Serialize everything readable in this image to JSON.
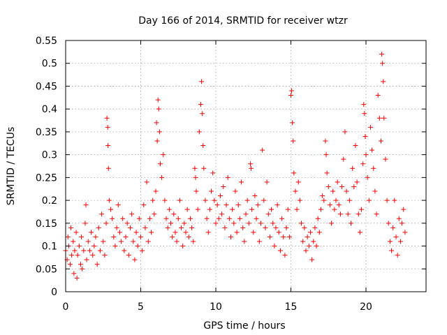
{
  "chart_data": {
    "type": "scatter",
    "title": "Day 166 of 2014, SRMTID for receiver wtzr",
    "xlabel": "GPS time / hours",
    "ylabel": "SRMTID / TECUs",
    "xlim": [
      0,
      24
    ],
    "ylim": [
      0,
      0.55
    ],
    "xticks": [
      0,
      5,
      10,
      15,
      20
    ],
    "xtick_labels": [
      "0",
      "5",
      "10",
      "15",
      "20"
    ],
    "yticks": [
      0,
      0.05,
      0.1,
      0.15,
      0.2,
      0.25,
      0.3,
      0.35,
      0.4,
      0.45,
      0.5,
      0.55
    ],
    "ytick_labels": [
      "0",
      "0.05",
      "0.1",
      "0.15",
      "0.2",
      "0.25",
      "0.3",
      "0.35",
      "0.4",
      "0.45",
      "0.5",
      "0.55"
    ],
    "grid": true,
    "marker": "+",
    "marker_color": "#ff0000",
    "series": [
      {
        "name": "SRMTID",
        "points": [
          [
            0.0,
            0.09
          ],
          [
            0.1,
            0.07
          ],
          [
            0.15,
            0.12
          ],
          [
            0.2,
            0.1
          ],
          [
            0.3,
            0.06
          ],
          [
            0.35,
            0.14
          ],
          [
            0.4,
            0.08
          ],
          [
            0.5,
            0.11
          ],
          [
            0.55,
            0.04
          ],
          [
            0.6,
            0.09
          ],
          [
            0.7,
            0.13
          ],
          [
            0.75,
            0.03
          ],
          [
            0.8,
            0.08
          ],
          [
            0.9,
            0.1
          ],
          [
            1.0,
            0.06
          ],
          [
            1.05,
            0.12
          ],
          [
            1.1,
            0.05
          ],
          [
            1.2,
            0.09
          ],
          [
            1.3,
            0.15
          ],
          [
            1.35,
            0.19
          ],
          [
            1.4,
            0.07
          ],
          [
            1.5,
            0.11
          ],
          [
            1.6,
            0.09
          ],
          [
            1.7,
            0.13
          ],
          [
            1.8,
            0.08
          ],
          [
            1.9,
            0.1
          ],
          [
            2.0,
            0.12
          ],
          [
            2.1,
            0.06
          ],
          [
            2.2,
            0.14
          ],
          [
            2.3,
            0.09
          ],
          [
            2.4,
            0.17
          ],
          [
            2.5,
            0.11
          ],
          [
            2.6,
            0.08
          ],
          [
            2.7,
            0.15
          ],
          [
            2.75,
            0.38
          ],
          [
            2.8,
            0.36
          ],
          [
            2.82,
            0.32
          ],
          [
            2.85,
            0.27
          ],
          [
            2.9,
            0.2
          ],
          [
            3.0,
            0.18
          ],
          [
            3.1,
            0.16
          ],
          [
            3.2,
            0.12
          ],
          [
            3.3,
            0.1
          ],
          [
            3.4,
            0.14
          ],
          [
            3.5,
            0.19
          ],
          [
            3.6,
            0.13
          ],
          [
            3.7,
            0.11
          ],
          [
            3.8,
            0.16
          ],
          [
            3.9,
            0.09
          ],
          [
            4.0,
            0.12
          ],
          [
            4.1,
            0.15
          ],
          [
            4.2,
            0.08
          ],
          [
            4.3,
            0.14
          ],
          [
            4.4,
            0.17
          ],
          [
            4.5,
            0.11
          ],
          [
            4.6,
            0.07
          ],
          [
            4.7,
            0.13
          ],
          [
            4.8,
            0.1
          ],
          [
            4.9,
            0.16
          ],
          [
            5.0,
            0.12
          ],
          [
            5.1,
            0.09
          ],
          [
            5.2,
            0.19
          ],
          [
            5.3,
            0.14
          ],
          [
            5.4,
            0.24
          ],
          [
            5.5,
            0.11
          ],
          [
            5.6,
            0.16
          ],
          [
            5.7,
            0.13
          ],
          [
            5.8,
            0.2
          ],
          [
            5.9,
            0.17
          ],
          [
            6.0,
            0.22
          ],
          [
            6.05,
            0.37
          ],
          [
            6.1,
            0.33
          ],
          [
            6.15,
            0.42
          ],
          [
            6.2,
            0.4
          ],
          [
            6.25,
            0.35
          ],
          [
            6.3,
            0.28
          ],
          [
            6.4,
            0.25
          ],
          [
            6.5,
            0.3
          ],
          [
            6.6,
            0.2
          ],
          [
            6.7,
            0.16
          ],
          [
            6.8,
            0.14
          ],
          [
            6.9,
            0.18
          ],
          [
            7.0,
            0.15
          ],
          [
            7.1,
            0.12
          ],
          [
            7.2,
            0.17
          ],
          [
            7.3,
            0.13
          ],
          [
            7.4,
            0.11
          ],
          [
            7.5,
            0.16
          ],
          [
            7.6,
            0.2
          ],
          [
            7.7,
            0.14
          ],
          [
            7.8,
            0.1
          ],
          [
            7.9,
            0.15
          ],
          [
            8.0,
            0.13
          ],
          [
            8.1,
            0.18
          ],
          [
            8.2,
            0.12
          ],
          [
            8.3,
            0.16
          ],
          [
            8.4,
            0.14
          ],
          [
            8.5,
            0.11
          ],
          [
            8.6,
            0.27
          ],
          [
            8.65,
            0.25
          ],
          [
            8.7,
            0.22
          ],
          [
            8.8,
            0.18
          ],
          [
            8.9,
            0.35
          ],
          [
            9.0,
            0.41
          ],
          [
            9.05,
            0.46
          ],
          [
            9.1,
            0.39
          ],
          [
            9.15,
            0.32
          ],
          [
            9.2,
            0.27
          ],
          [
            9.3,
            0.2
          ],
          [
            9.4,
            0.16
          ],
          [
            9.5,
            0.13
          ],
          [
            9.6,
            0.18
          ],
          [
            9.7,
            0.22
          ],
          [
            9.8,
            0.26
          ],
          [
            9.9,
            0.2
          ],
          [
            10.0,
            0.15
          ],
          [
            10.1,
            0.19
          ],
          [
            10.2,
            0.16
          ],
          [
            10.3,
            0.21
          ],
          [
            10.4,
            0.17
          ],
          [
            10.5,
            0.23
          ],
          [
            10.6,
            0.14
          ],
          [
            10.7,
            0.19
          ],
          [
            10.8,
            0.25
          ],
          [
            10.9,
            0.16
          ],
          [
            11.0,
            0.12
          ],
          [
            11.1,
            0.18
          ],
          [
            11.2,
            0.15
          ],
          [
            11.3,
            0.22
          ],
          [
            11.4,
            0.13
          ],
          [
            11.5,
            0.19
          ],
          [
            11.6,
            0.16
          ],
          [
            11.7,
            0.24
          ],
          [
            11.8,
            0.14
          ],
          [
            11.9,
            0.11
          ],
          [
            12.0,
            0.17
          ],
          [
            12.1,
            0.2
          ],
          [
            12.2,
            0.15
          ],
          [
            12.3,
            0.28
          ],
          [
            12.35,
            0.27
          ],
          [
            12.4,
            0.18
          ],
          [
            12.5,
            0.13
          ],
          [
            12.6,
            0.21
          ],
          [
            12.7,
            0.16
          ],
          [
            12.8,
            0.19
          ],
          [
            12.9,
            0.11
          ],
          [
            13.0,
            0.15
          ],
          [
            13.1,
            0.31
          ],
          [
            13.2,
            0.2
          ],
          [
            13.3,
            0.14
          ],
          [
            13.4,
            0.24
          ],
          [
            13.5,
            0.17
          ],
          [
            13.6,
            0.12
          ],
          [
            13.7,
            0.18
          ],
          [
            13.8,
            0.15
          ],
          [
            13.9,
            0.1
          ],
          [
            14.0,
            0.14
          ],
          [
            14.1,
            0.19
          ],
          [
            14.2,
            0.13
          ],
          [
            14.3,
            0.09
          ],
          [
            14.4,
            0.16
          ],
          [
            14.5,
            0.12
          ],
          [
            14.6,
            0.08
          ],
          [
            14.7,
            0.14
          ],
          [
            14.8,
            0.18
          ],
          [
            14.9,
            0.12
          ],
          [
            15.0,
            0.43
          ],
          [
            15.05,
            0.44
          ],
          [
            15.1,
            0.37
          ],
          [
            15.15,
            0.33
          ],
          [
            15.2,
            0.26
          ],
          [
            15.3,
            0.22
          ],
          [
            15.4,
            0.18
          ],
          [
            15.5,
            0.24
          ],
          [
            15.6,
            0.2
          ],
          [
            15.7,
            0.15
          ],
          [
            15.8,
            0.11
          ],
          [
            15.9,
            0.14
          ],
          [
            16.0,
            0.09
          ],
          [
            16.1,
            0.12
          ],
          [
            16.2,
            0.1
          ],
          [
            16.3,
            0.13
          ],
          [
            16.4,
            0.07
          ],
          [
            16.5,
            0.11
          ],
          [
            16.6,
            0.14
          ],
          [
            16.7,
            0.1
          ],
          [
            16.8,
            0.16
          ],
          [
            16.9,
            0.13
          ],
          [
            17.0,
            0.18
          ],
          [
            17.1,
            0.21
          ],
          [
            17.2,
            0.2
          ],
          [
            17.3,
            0.33
          ],
          [
            17.35,
            0.3
          ],
          [
            17.4,
            0.26
          ],
          [
            17.5,
            0.23
          ],
          [
            17.6,
            0.19
          ],
          [
            17.7,
            0.15
          ],
          [
            17.8,
            0.22
          ],
          [
            17.9,
            0.18
          ],
          [
            18.0,
            0.2
          ],
          [
            18.1,
            0.24
          ],
          [
            18.2,
            0.19
          ],
          [
            18.3,
            0.17
          ],
          [
            18.4,
            0.23
          ],
          [
            18.5,
            0.29
          ],
          [
            18.6,
            0.35
          ],
          [
            18.7,
            0.22
          ],
          [
            18.8,
            0.17
          ],
          [
            18.9,
            0.2
          ],
          [
            19.0,
            0.15
          ],
          [
            19.1,
            0.27
          ],
          [
            19.2,
            0.23
          ],
          [
            19.3,
            0.32
          ],
          [
            19.4,
            0.24
          ],
          [
            19.5,
            0.17
          ],
          [
            19.6,
            0.13
          ],
          [
            19.7,
            0.18
          ],
          [
            19.8,
            0.28
          ],
          [
            19.85,
            0.41
          ],
          [
            19.9,
            0.39
          ],
          [
            19.95,
            0.34
          ],
          [
            20.0,
            0.3
          ],
          [
            20.1,
            0.25
          ],
          [
            20.2,
            0.2
          ],
          [
            20.3,
            0.36
          ],
          [
            20.4,
            0.31
          ],
          [
            20.5,
            0.27
          ],
          [
            20.6,
            0.22
          ],
          [
            20.7,
            0.17
          ],
          [
            20.8,
            0.43
          ],
          [
            20.9,
            0.38
          ],
          [
            21.0,
            0.33
          ],
          [
            21.05,
            0.52
          ],
          [
            21.1,
            0.5
          ],
          [
            21.15,
            0.46
          ],
          [
            21.2,
            0.38
          ],
          [
            21.3,
            0.29
          ],
          [
            21.4,
            0.2
          ],
          [
            21.5,
            0.15
          ],
          [
            21.6,
            0.11
          ],
          [
            21.7,
            0.09
          ],
          [
            21.8,
            0.14
          ],
          [
            21.9,
            0.2
          ],
          [
            22.0,
            0.12
          ],
          [
            22.1,
            0.08
          ],
          [
            22.2,
            0.16
          ],
          [
            22.3,
            0.11
          ],
          [
            22.4,
            0.15
          ],
          [
            22.5,
            0.18
          ],
          [
            22.6,
            0.13
          ]
        ]
      }
    ]
  }
}
